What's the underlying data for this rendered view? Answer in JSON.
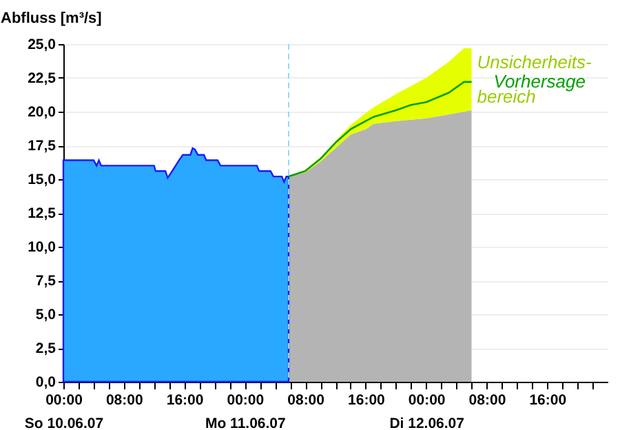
{
  "chart_data": {
    "type": "area",
    "ylabel": "Abfluss [m³/s]",
    "xlim": [
      "--06-10T00:00",
      "--06-13T00:00"
    ],
    "xticks": [
      {
        "value": "--06-10T00:00",
        "label": "00:00\nSo 10.06.07"
      },
      {
        "value": "--06-10T02:00",
        "label": null
      },
      {
        "value": "--06-10T04:00",
        "label": null
      },
      {
        "value": "--06-10T06:00",
        "label": null
      },
      {
        "value": "--06-10T08:00",
        "label": "08:00"
      },
      {
        "value": "--06-10T10:00",
        "label": null
      },
      {
        "value": "--06-10T12:00",
        "label": null
      },
      {
        "value": "--06-10T14:00",
        "label": null
      },
      {
        "value": "--06-10T16:00",
        "label": "16:00"
      },
      {
        "value": "--06-10T18:00",
        "label": null
      },
      {
        "value": "--06-10T20:00",
        "label": null
      },
      {
        "value": "--06-10T22:00",
        "label": null
      },
      {
        "value": "--06-11T00:00",
        "label": "00:00\nMo 11.06.07"
      },
      {
        "value": "--06-11T02:00",
        "label": null
      },
      {
        "value": "--06-11T04:00",
        "label": null
      },
      {
        "value": "--06-11T06:00",
        "label": null
      },
      {
        "value": "--06-11T08:00",
        "label": "08:00"
      },
      {
        "value": "--06-11T10:00",
        "label": null
      },
      {
        "value": "--06-11T12:00",
        "label": null
      },
      {
        "value": "--06-11T14:00",
        "label": null
      },
      {
        "value": "--06-11T16:00",
        "label": "16:00"
      },
      {
        "value": "--06-11T18:00",
        "label": null
      },
      {
        "value": "--06-11T20:00",
        "label": null
      },
      {
        "value": "--06-11T22:00",
        "label": null
      },
      {
        "value": "--06-12T00:00",
        "label": "00:00\nDi 12.06.07"
      },
      {
        "value": "--06-12T02:00",
        "label": null
      },
      {
        "value": "--06-12T04:00",
        "label": null
      },
      {
        "value": "--06-12T06:00",
        "label": null
      },
      {
        "value": "--06-12T08:00",
        "label": "08:00"
      },
      {
        "value": "--06-12T10:00",
        "label": null
      },
      {
        "value": "--06-12T12:00",
        "label": null
      },
      {
        "value": "--06-12T14:00",
        "label": null
      },
      {
        "value": "--06-12T16:00",
        "label": "16:00"
      },
      {
        "value": "--06-12T18:00",
        "label": null
      },
      {
        "value": "--06-12T20:00",
        "label": null
      },
      {
        "value": "--06-12T22:00",
        "label": null
      }
    ],
    "ylim": [
      0,
      25
    ],
    "yticks": [
      {
        "value": 0,
        "label": "0,0"
      },
      {
        "value": 2.5,
        "label": "2,5"
      },
      {
        "value": 5,
        "label": "5,0"
      },
      {
        "value": 7.5,
        "label": "7,5"
      },
      {
        "value": 10,
        "label": "10,0"
      },
      {
        "value": 12.5,
        "label": "12,5"
      },
      {
        "value": 15,
        "label": "15,0"
      },
      {
        "value": 17.5,
        "label": "17,5"
      },
      {
        "value": 20,
        "label": "20,0"
      },
      {
        "value": 22.5,
        "label": "22,5"
      },
      {
        "value": 25,
        "label": "25,0"
      }
    ],
    "grid": "y",
    "legend": false,
    "series": [
      {
        "color": "#b4b4b4",
        "x": [
          "--06-11T05:48",
          "--06-11T08:00",
          "--06-11T10:00",
          "--06-11T12:00",
          "--06-11T14:00",
          "--06-11T16:00",
          "--06-11T17:00",
          "--06-11T20:00",
          "--06-11T22:00",
          "--06-12T00:00",
          "--06-12T03:00",
          "--06-12T05:00",
          "--06-12T06:00"
        ],
        "values": [
          15.2,
          15.5,
          16.3,
          17.3,
          18.3,
          18.7,
          19.1,
          19.3,
          19.4,
          19.5,
          19.8,
          20.0,
          20.1
        ]
      },
      {
        "color": "#2aa8ff",
        "x": [
          "--06-10T00:00",
          "--06-10T04:00",
          "--06-10T04:24",
          "--06-10T04:42",
          "--06-10T05:00",
          "--06-10T12:00",
          "--06-10T12:12",
          "--06-10T13:30",
          "--06-10T13:48",
          "--06-10T14:24",
          "--06-10T15:18",
          "--06-10T15:48",
          "--06-10T16:48",
          "--06-10T17:06",
          "--06-10T17:24",
          "--06-10T17:48",
          "--06-10T18:36",
          "--06-10T18:54",
          "--06-10T20:24",
          "--06-10T20:48",
          "--06-11T01:36",
          "--06-11T01:54",
          "--06-11T03:24",
          "--06-11T03:48",
          "--06-11T04:54",
          "--06-11T05:12",
          "--06-11T05:30",
          "--06-11T05:48"
        ],
        "values": [
          16.4,
          16.4,
          16.0,
          16.4,
          16.0,
          16.0,
          15.6,
          15.6,
          15.1,
          15.6,
          16.4,
          16.8,
          16.8,
          17.3,
          17.2,
          16.8,
          16.8,
          16.4,
          16.4,
          16.0,
          16.0,
          15.6,
          15.6,
          15.2,
          15.2,
          14.8,
          15.2,
          15.2
        ]
      },
      {
        "type": "line",
        "name": "Vorhersage",
        "color": "#00a000",
        "x": [
          "--06-11T05:48",
          "--06-11T08:00",
          "--06-11T10:00",
          "--06-11T12:00",
          "--06-11T14:00",
          "--06-11T16:00",
          "--06-11T17:00",
          "--06-11T20:00",
          "--06-11T22:00",
          "--06-12T00:00",
          "--06-12T03:00",
          "--06-12T05:00",
          "--06-12T06:00"
        ],
        "values": [
          15.2,
          15.6,
          16.5,
          17.7,
          18.7,
          19.3,
          19.6,
          20.1,
          20.5,
          20.7,
          21.4,
          22.2,
          22.2
        ],
        "lower": [
          15.2,
          15.5,
          16.3,
          17.3,
          18.3,
          18.7,
          19.1,
          19.3,
          19.4,
          19.5,
          19.8,
          20.0,
          20.1
        ],
        "upper": [
          15.2,
          15.7,
          16.6,
          17.8,
          19.0,
          19.9,
          20.3,
          21.3,
          21.9,
          22.5,
          23.7,
          24.7,
          24.7
        ]
      }
    ],
    "ref_lines": [
      {
        "axis": "x",
        "value": "--06-11T05:48",
        "color": "#8fd8ff",
        "line_style": "dashed"
      }
    ],
    "annotations": [
      {
        "text": "Unsicherheits-\nbereich",
        "x": "--06-12T06:00",
        "y": 23.6
      }
    ]
  }
}
